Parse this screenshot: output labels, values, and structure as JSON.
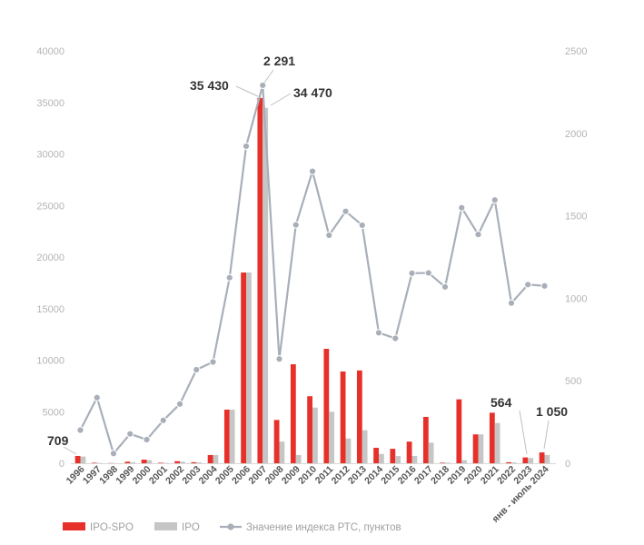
{
  "chart_data": {
    "type": "bar",
    "categories": [
      "1996",
      "1997",
      "1998",
      "1999",
      "2000",
      "2001",
      "2002",
      "2003",
      "2004",
      "2005",
      "2006",
      "2007",
      "2008",
      "2009",
      "2010",
      "2011",
      "2012",
      "2013",
      "2014",
      "2015",
      "2016",
      "2017",
      "2018",
      "2019",
      "2020",
      "2021",
      "2022",
      "2023",
      "янв - июль 2024"
    ],
    "series": [
      {
        "name": "IPO-SPO",
        "kind": "bar",
        "axis": "left",
        "color": "#e8302a",
        "values": [
          709,
          50,
          20,
          150,
          350,
          50,
          200,
          100,
          800,
          5200,
          18500,
          35430,
          4200,
          9600,
          6500,
          11100,
          8900,
          9000,
          1500,
          1400,
          2100,
          4500,
          50,
          6200,
          2800,
          4900,
          100,
          564,
          1050
        ]
      },
      {
        "name": "IPO",
        "kind": "bar",
        "axis": "left",
        "color": "#c6c6c6",
        "values": [
          650,
          30,
          10,
          100,
          300,
          30,
          150,
          80,
          800,
          5200,
          18500,
          34470,
          2100,
          800,
          5400,
          5000,
          2400,
          3200,
          900,
          700,
          700,
          2000,
          50,
          300,
          2800,
          3900,
          80,
          500,
          800
        ]
      },
      {
        "name": "Значение индекса РТС, пунктов",
        "kind": "line",
        "axis": "right",
        "color": "#a8afb9",
        "values": [
          201,
          398,
          59,
          178,
          143,
          260,
          359,
          567,
          614,
          1125,
          1922,
          2291,
          632,
          1445,
          1770,
          1382,
          1527,
          1443,
          791,
          757,
          1152,
          1154,
          1069,
          1549,
          1387,
          1596,
          971,
          1083,
          1075
        ]
      }
    ],
    "ylim": [
      0,
      40000
    ],
    "y2lim": [
      0,
      2500
    ],
    "yticks": [
      0,
      5000,
      10000,
      15000,
      20000,
      25000,
      30000,
      35000,
      40000
    ],
    "y2ticks": [
      0,
      500,
      1000,
      1500,
      2000,
      2500
    ],
    "annotations": [
      {
        "text": "709",
        "series": "IPO-SPO",
        "category": "1996"
      },
      {
        "text": "35 430",
        "series": "IPO-SPO",
        "category": "2007"
      },
      {
        "text": "2 291",
        "series": "Значение индекса РТС, пунктов",
        "category": "2007"
      },
      {
        "text": "34 470",
        "series": "IPO",
        "category": "2007"
      },
      {
        "text": "564",
        "series": "IPO-SPO",
        "category": "2023"
      },
      {
        "text": "1 050",
        "series": "IPO-SPO",
        "category": "янв - июль 2024"
      }
    ],
    "legend_position": "bottom",
    "grid": false
  }
}
